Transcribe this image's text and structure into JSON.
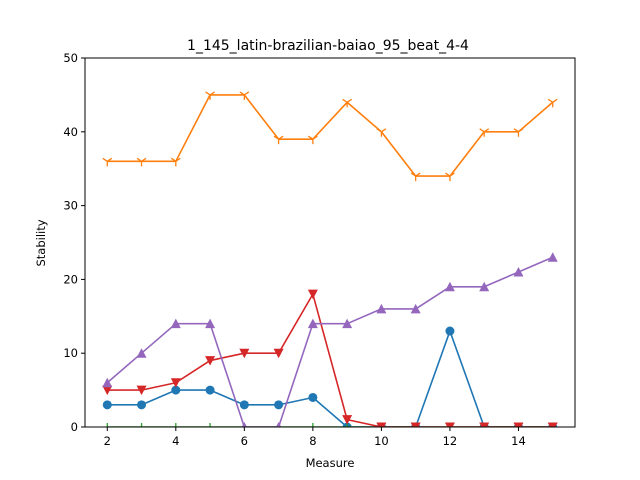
{
  "chart_data": {
    "type": "line",
    "title": "1_145_latin-brazilian-baiao_95_beat_4-4",
    "xlabel": "Measure",
    "ylabel": "Stability",
    "xlim": [
      1.35,
      15.65
    ],
    "ylim": [
      0,
      50
    ],
    "xticks": [
      2,
      4,
      6,
      8,
      10,
      12,
      14
    ],
    "yticks": [
      0,
      10,
      20,
      30,
      40,
      50
    ],
    "grid": false,
    "legend": "none",
    "x": [
      2,
      3,
      4,
      5,
      6,
      7,
      8,
      9,
      10,
      11,
      12,
      13,
      14,
      15
    ],
    "series": [
      {
        "color": "#1f77b4",
        "marker": "circle",
        "values": [
          3,
          3,
          5,
          5,
          3,
          3,
          4,
          0,
          0,
          0,
          13,
          0,
          0,
          0
        ]
      },
      {
        "color": "#ff7f0e",
        "marker": "tri_down",
        "values": [
          36,
          36,
          36,
          45,
          45,
          39,
          39,
          44,
          40,
          34,
          34,
          40,
          40,
          44
        ]
      },
      {
        "color": "#2ca02c",
        "marker": "tick",
        "values": [
          0,
          0,
          0,
          0,
          0,
          0,
          0,
          0,
          0,
          0,
          0,
          0,
          0,
          0
        ]
      },
      {
        "color": "#d62728",
        "marker": "triangle_down",
        "values": [
          5,
          5,
          6,
          9,
          10,
          10,
          18,
          1,
          0,
          0,
          0,
          0,
          0,
          0
        ]
      },
      {
        "color": "#9467bd",
        "marker": "triangle_up",
        "values": [
          6,
          10,
          14,
          14,
          0,
          0,
          14,
          14,
          16,
          16,
          19,
          19,
          21,
          23
        ]
      }
    ]
  }
}
